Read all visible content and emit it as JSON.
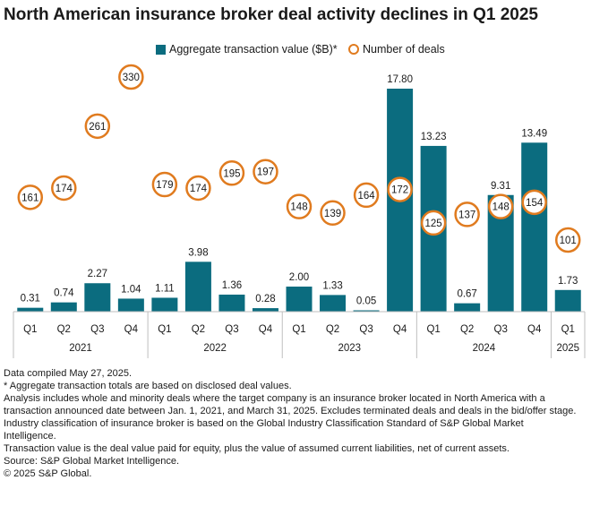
{
  "title": "North American insurance broker deal activity declines in Q1 2025",
  "legend": {
    "bars_label": "Aggregate transaction value ($B)*",
    "dots_label": "Number of deals"
  },
  "colors": {
    "bar": "#0b6c7f",
    "dot_ring": "#e07b1f",
    "axis": "#bfbfbf",
    "text": "#1a1a1a"
  },
  "chart_data": {
    "type": "bar",
    "title": "North American insurance broker deal activity declines in Q1 2025",
    "categories": [
      "Q1",
      "Q2",
      "Q3",
      "Q4",
      "Q1",
      "Q2",
      "Q3",
      "Q4",
      "Q1",
      "Q2",
      "Q3",
      "Q4",
      "Q1",
      "Q2",
      "Q3",
      "Q4",
      "Q1"
    ],
    "years": [
      {
        "label": "2021",
        "span": 4
      },
      {
        "label": "2022",
        "span": 4
      },
      {
        "label": "2023",
        "span": 4
      },
      {
        "label": "2024",
        "span": 4
      },
      {
        "label": "2025",
        "span": 1
      }
    ],
    "series": [
      {
        "name": "Aggregate transaction value ($B)*",
        "kind": "bar",
        "values": [
          0.31,
          0.74,
          2.27,
          1.04,
          1.11,
          3.98,
          1.36,
          0.28,
          2.0,
          1.33,
          0.05,
          17.8,
          13.23,
          0.67,
          9.31,
          13.49,
          1.73
        ],
        "labels": [
          "0.31",
          "0.74",
          "2.27",
          "1.04",
          "1.11",
          "3.98",
          "1.36",
          "0.28",
          "2.00",
          "1.33",
          "0.05",
          "17.80",
          "13.23",
          "0.67",
          "9.31",
          "13.49",
          "1.73"
        ]
      },
      {
        "name": "Number of deals",
        "kind": "dot",
        "values": [
          161,
          174,
          261,
          330,
          179,
          174,
          195,
          197,
          148,
          139,
          164,
          172,
          125,
          137,
          148,
          154,
          101
        ]
      }
    ],
    "ylim_bars": [
      0,
      18
    ],
    "ylim_dots": [
      0,
      350
    ],
    "grid": false,
    "legend_position": "top-center"
  },
  "notes": [
    "Data compiled May 27, 2025.",
    "* Aggregate transaction totals are based on disclosed deal values.",
    "Analysis includes whole and minority deals where the target company is an insurance broker located in North America with a transaction announced date between Jan. 1, 2021, and March 31, 2025. Excludes terminated deals and deals in the bid/offer stage.",
    "Industry classification of insurance broker is based on the Global Industry Classification Standard of S&P Global Market Intelligence.",
    "Transaction value is the deal value paid for equity, plus the value of assumed current liabilities, net of current assets.",
    "Source: S&P Global Market Intelligence.",
    "© 2025 S&P Global."
  ]
}
